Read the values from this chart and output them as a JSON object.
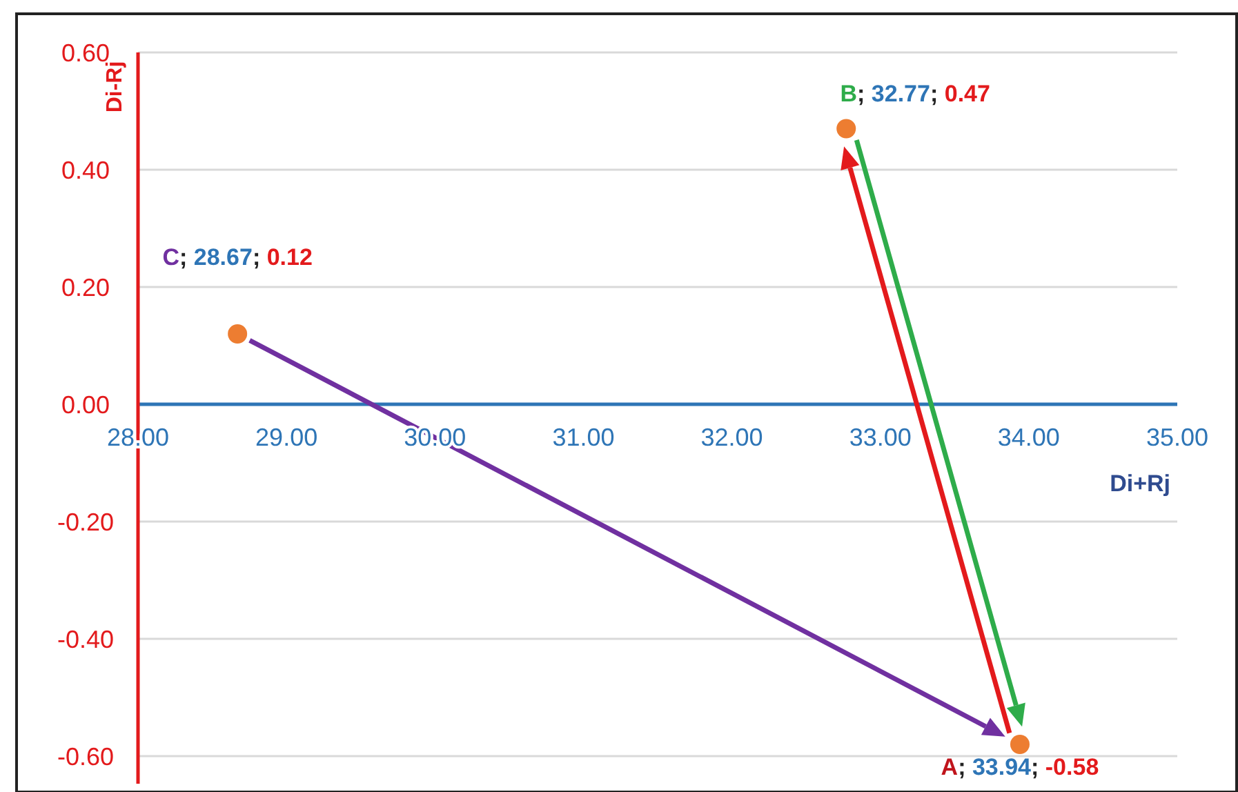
{
  "chart_data": {
    "type": "scatter",
    "xlabel": "Di+Rj",
    "ylabel": "Di-Rj",
    "x": [
      33.94,
      32.77,
      28.67
    ],
    "series": [
      {
        "color": "#ed7d31",
        "values": [
          -0.58,
          0.47,
          0.12
        ],
        "value_labels": [
          "A; 33.94; -0.58",
          "B; 32.77; 0.47",
          "C; 28.67; 0.12"
        ]
      }
    ],
    "xlim": [
      28,
      35
    ],
    "xticks": [
      {
        "value": 28,
        "label": "28.00"
      },
      {
        "value": 29,
        "label": "29.00"
      },
      {
        "value": 30,
        "label": "30.00"
      },
      {
        "value": 31,
        "label": "31.00"
      },
      {
        "value": 32,
        "label": "32.00"
      },
      {
        "value": 33,
        "label": "33.00"
      },
      {
        "value": 34,
        "label": "34.00"
      },
      {
        "value": 35,
        "label": "35.00"
      }
    ],
    "ylim": [
      -0.6,
      0.6
    ],
    "yticks": [
      {
        "value": -0.6,
        "label": "-0.60"
      },
      {
        "value": -0.4,
        "label": "-0.40"
      },
      {
        "value": -0.2,
        "label": "-0.20"
      },
      {
        "value": 0,
        "label": "0.00"
      },
      {
        "value": 0.2,
        "label": "0.20"
      },
      {
        "value": 0.4,
        "label": "0.40"
      },
      {
        "value": 0.6,
        "label": "0.60"
      }
    ],
    "grid": "y",
    "marker": "circle"
  }
}
